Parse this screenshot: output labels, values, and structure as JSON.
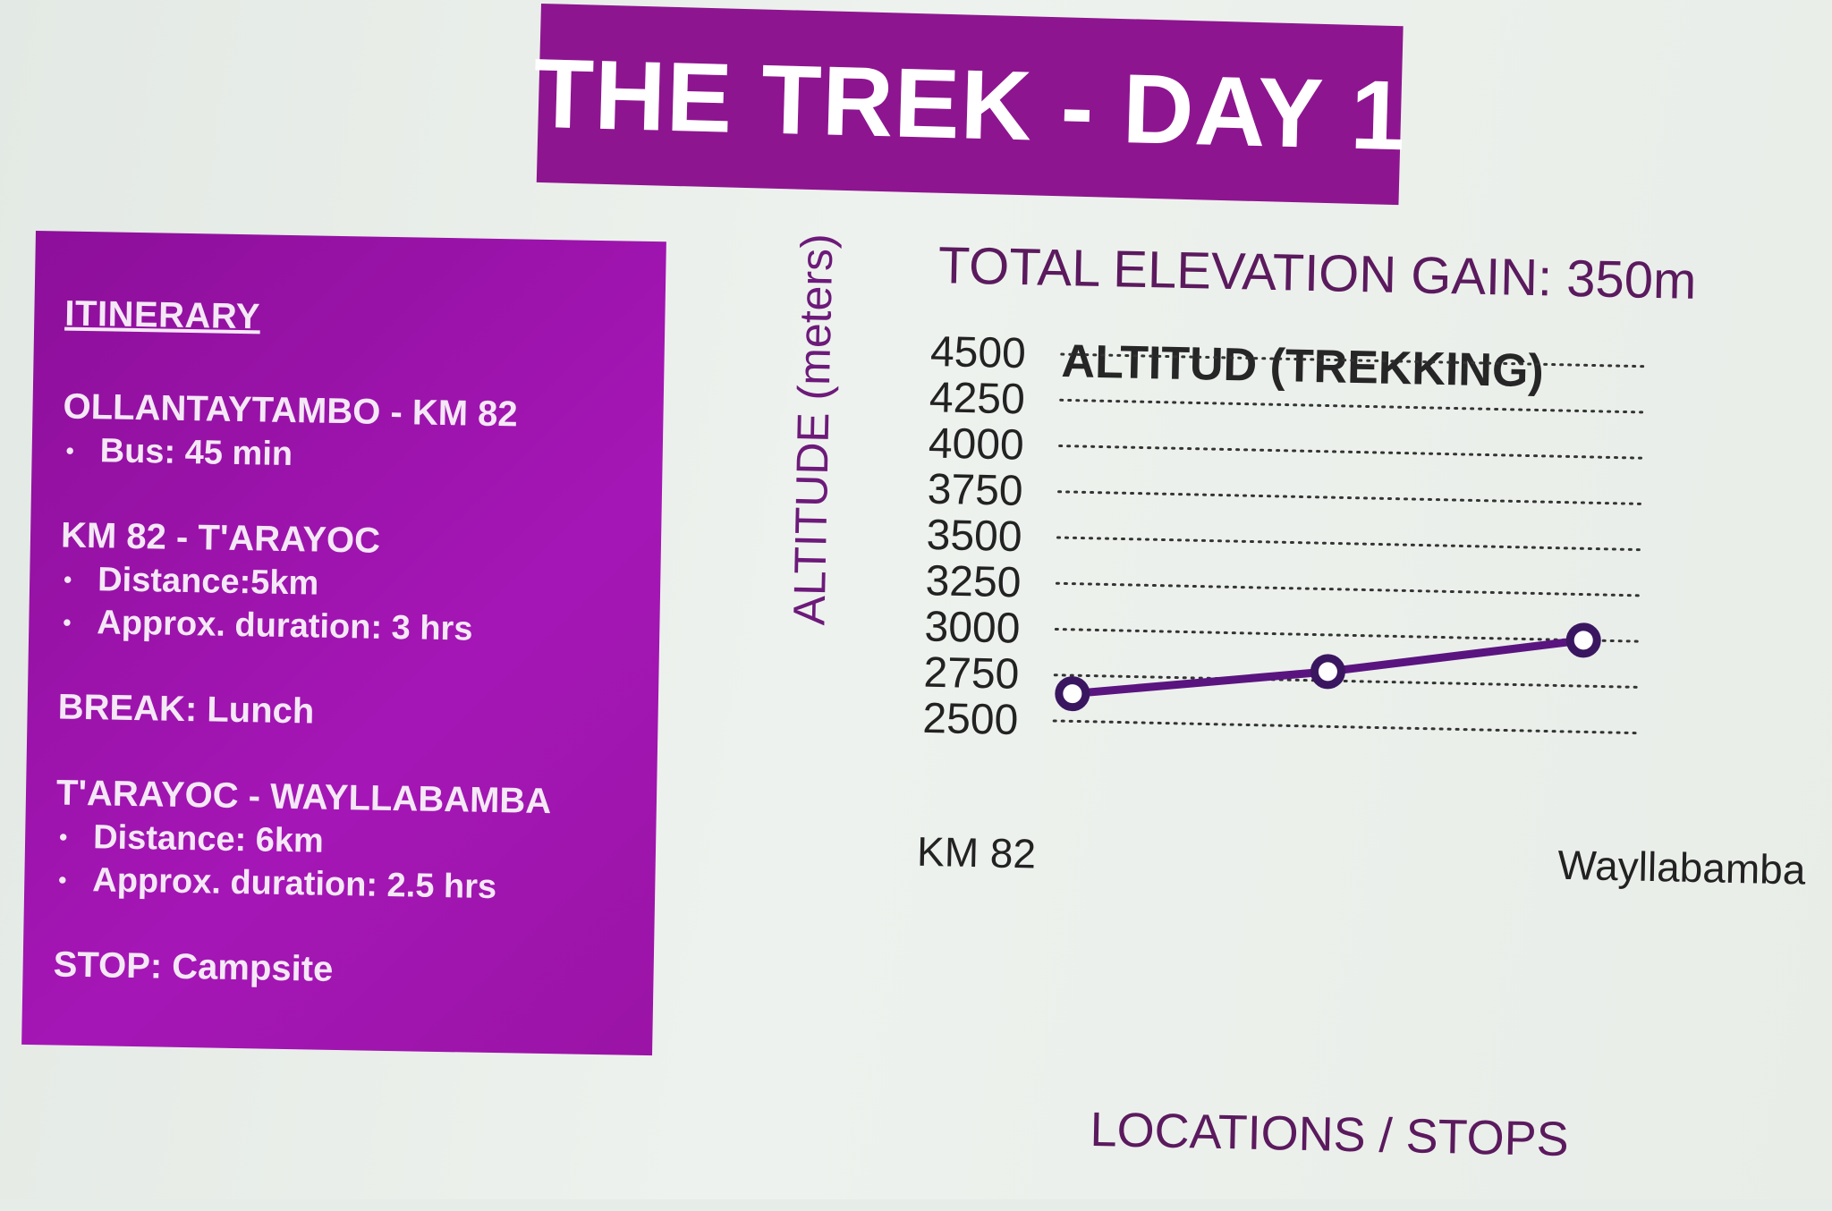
{
  "slide": {
    "title": "THE TREK - DAY 1"
  },
  "itinerary": {
    "heading": "ITINERARY",
    "sections": [
      {
        "title": "OLLANTAYTAMBO - KM 82",
        "bullets": [
          "Bus: 45 min"
        ]
      },
      {
        "title": "KM 82 - T'ARAYOC",
        "bullets": [
          "Distance:5km",
          "Approx. duration: 3 hrs"
        ]
      },
      {
        "title": "BREAK: Lunch",
        "bullets": []
      },
      {
        "title": "T'ARAYOC - WAYLLABAMBA",
        "bullets": [
          "Distance: 6km",
          "Approx. duration: 2.5 hrs"
        ]
      },
      {
        "title": "STOP: Campsite",
        "bullets": []
      }
    ]
  },
  "elevation_gain": "TOTAL ELEVATION GAIN: 350m",
  "chart_data": {
    "type": "line",
    "title": "ALTITUD (TREKKING)",
    "xlabel": "LOCATIONS / STOPS",
    "ylabel": "ALTITUDE (meters)",
    "ylim": [
      2500,
      4500
    ],
    "yticks": [
      4500,
      4250,
      4000,
      3750,
      3500,
      3250,
      3000,
      2750,
      2500
    ],
    "grid": "dotted horizontal",
    "categories": [
      "KM 82",
      "",
      "Wayllabamba"
    ],
    "series": [
      {
        "values": [
          2650,
          2800,
          3000
        ]
      }
    ],
    "colors": {
      "line": "#5a1480",
      "marker_fill": "#ffffff",
      "marker_stroke": "#3b1660",
      "grid": "#333333"
    }
  }
}
